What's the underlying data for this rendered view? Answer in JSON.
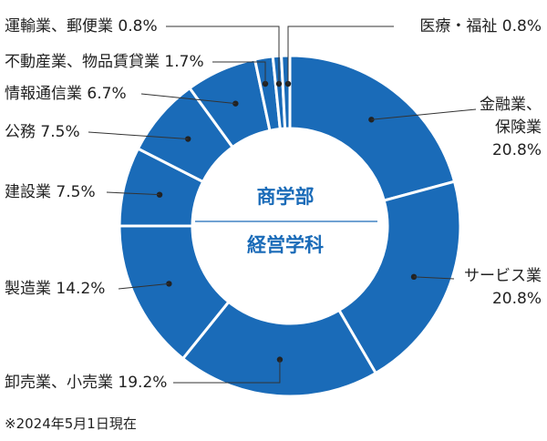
{
  "chart_data": {
    "type": "pie",
    "donut": true,
    "title": "",
    "center_text": [
      "商学部",
      "経営学科"
    ],
    "note": "※2024年5月1日現在",
    "color": "#1a6bb8",
    "start_angle_deg": 0,
    "direction": "clockwise",
    "slices": [
      {
        "label": "金融業、保険業",
        "value": 20.8,
        "display": "20.8%"
      },
      {
        "label": "サービス業",
        "value": 20.8,
        "display": "20.8%"
      },
      {
        "label": "卸売業、小売業",
        "value": 19.2,
        "display": "19.2%"
      },
      {
        "label": "製造業",
        "value": 14.2,
        "display": "14.2%"
      },
      {
        "label": "建設業",
        "value": 7.5,
        "display": "7.5%"
      },
      {
        "label": "公務",
        "value": 7.5,
        "display": "7.5%"
      },
      {
        "label": "情報通信業",
        "value": 6.7,
        "display": "6.7%"
      },
      {
        "label": "不動産業、物品賃貸業",
        "value": 1.7,
        "display": "1.7%"
      },
      {
        "label": "運輸業、郵便業",
        "value": 0.8,
        "display": "0.8%"
      },
      {
        "label": "医療・福祉",
        "value": 0.8,
        "display": "0.8%"
      }
    ]
  }
}
